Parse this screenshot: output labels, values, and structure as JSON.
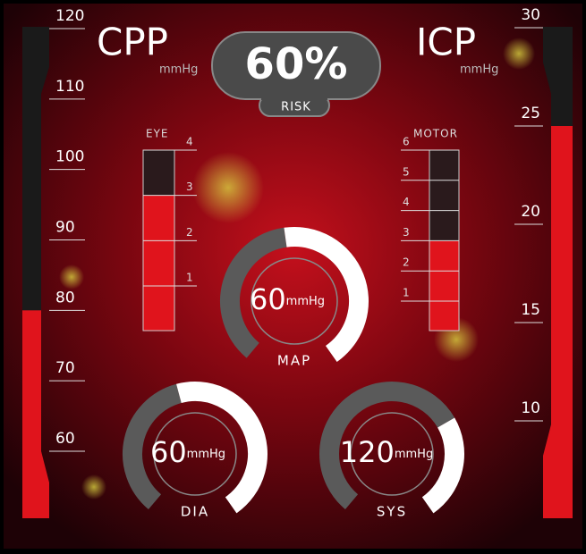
{
  "cpp": {
    "title": "CPP",
    "unit": "mmHg",
    "ticks": [
      120,
      110,
      100,
      90,
      80,
      70,
      60
    ],
    "level": 80
  },
  "icp": {
    "title": "ICP",
    "unit": "mmHg",
    "ticks": [
      30,
      25,
      20,
      15,
      10
    ],
    "level": 25
  },
  "eye": {
    "title": "EYE",
    "ticks": [
      4,
      3,
      2,
      1
    ],
    "level": 3
  },
  "motor": {
    "title": "MOTOR",
    "ticks": [
      6,
      5,
      4,
      3,
      2,
      1
    ],
    "level": 3
  },
  "risk": {
    "value": "60%",
    "label": "RISK"
  },
  "gauges": [
    {
      "label": "MAP",
      "value": 60,
      "unit": "mmHg"
    },
    {
      "label": "DIA",
      "value": 60,
      "unit": "mmHg"
    },
    {
      "label": "SYS",
      "value": 120,
      "unit": "mmHg"
    }
  ]
}
